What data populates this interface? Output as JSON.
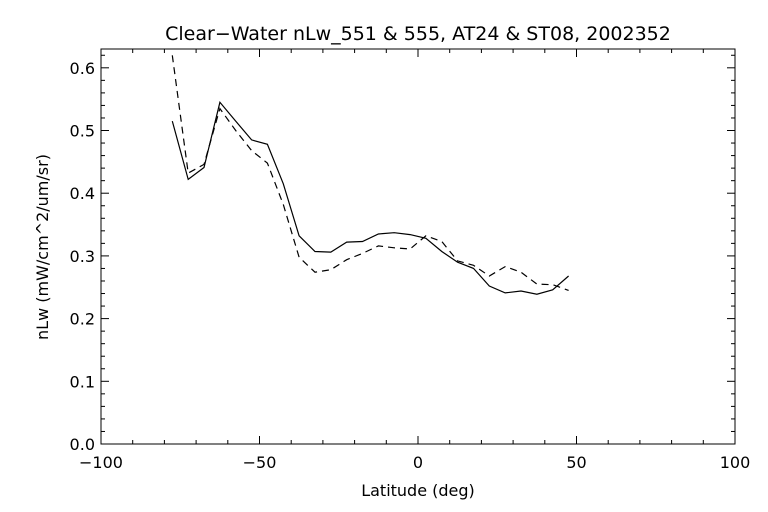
{
  "chart_data": {
    "type": "line",
    "title": "Clear−Water nLw_551 & 555, AT24 & ST08, 2002352",
    "xlabel": "Latitude (deg)",
    "ylabel": "nLw (mW/cm^2/um/sr)",
    "xlim": [
      -100,
      100
    ],
    "ylim": [
      0.0,
      0.63
    ],
    "x_ticks": [
      -100,
      -50,
      0,
      50,
      100
    ],
    "x_tick_labels": [
      "−100",
      "−50",
      "0",
      "50",
      "100"
    ],
    "y_ticks": [
      0.0,
      0.1,
      0.2,
      0.3,
      0.4,
      0.5,
      0.6
    ],
    "y_tick_labels": [
      "0.0",
      "0.1",
      "0.2",
      "0.3",
      "0.4",
      "0.5",
      "0.6"
    ],
    "grid": false,
    "series": [
      {
        "style": "solid",
        "color": "#000000",
        "x": [
          -77.5,
          -72.5,
          -67.5,
          -62.5,
          -57.5,
          -52.5,
          -47.5,
          -42.5,
          -37.5,
          -32.5,
          -27.5,
          -22.5,
          -17.5,
          -12.5,
          -7.5,
          -2.5,
          2.5,
          7.5,
          12.5,
          17.5,
          22.5,
          27.5,
          32.5,
          37.5,
          42.5,
          47.5
        ],
        "values": [
          0.515,
          0.422,
          0.441,
          0.545,
          0.515,
          0.485,
          0.478,
          0.415,
          0.332,
          0.307,
          0.306,
          0.322,
          0.323,
          0.335,
          0.337,
          0.334,
          0.328,
          0.307,
          0.29,
          0.28,
          0.252,
          0.241,
          0.244,
          0.239,
          0.246,
          0.268
        ]
      },
      {
        "style": "dashed",
        "color": "#000000",
        "x": [
          -77.5,
          -72.5,
          -67.5,
          -62.5,
          -57.5,
          -52.5,
          -47.5,
          -42.5,
          -37.5,
          -32.5,
          -27.5,
          -22.5,
          -17.5,
          -12.5,
          -7.5,
          -2.5,
          2.5,
          7.5,
          12.5,
          17.5,
          22.5,
          27.5,
          32.5,
          37.5,
          42.5,
          47.5
        ],
        "values": [
          0.62,
          0.432,
          0.446,
          0.535,
          0.5,
          0.468,
          0.448,
          0.382,
          0.298,
          0.274,
          0.278,
          0.294,
          0.304,
          0.316,
          0.313,
          0.311,
          0.332,
          0.323,
          0.292,
          0.285,
          0.268,
          0.283,
          0.274,
          0.255,
          0.254,
          0.245
        ]
      }
    ]
  }
}
